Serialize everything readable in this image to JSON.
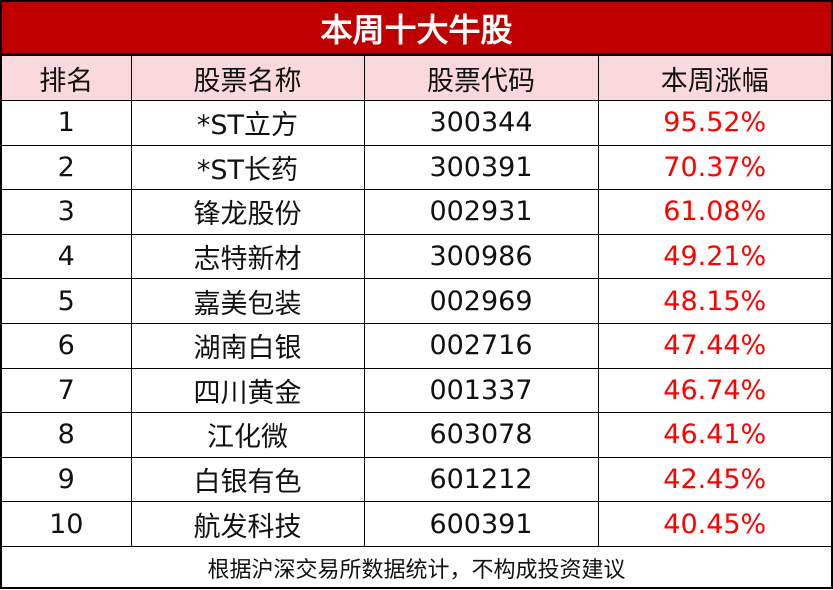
{
  "title": "本周十大牛股",
  "headers": [
    "排名",
    "股票名称",
    "股票代码",
    "本周涨幅"
  ],
  "rows": [
    {
      "rank": "1",
      "name": "*ST立方",
      "code": "300344",
      "change": "95.52%"
    },
    {
      "rank": "2",
      "name": "*ST长药",
      "code": "300391",
      "change": "70.37%"
    },
    {
      "rank": "3",
      "name": "锋龙股份",
      "code": "002931",
      "change": "61.08%"
    },
    {
      "rank": "4",
      "name": "志特新材",
      "code": "300986",
      "change": "49.21%"
    },
    {
      "rank": "5",
      "name": "嘉美包装",
      "code": "002969",
      "change": "48.15%"
    },
    {
      "rank": "6",
      "name": "湖南白银",
      "code": "002716",
      "change": "47.44%"
    },
    {
      "rank": "7",
      "name": "四川黄金",
      "code": "001337",
      "change": "46.74%"
    },
    {
      "rank": "8",
      "name": "江化微",
      "code": "603078",
      "change": "46.41%"
    },
    {
      "rank": "9",
      "name": "白银有色",
      "code": "601212",
      "change": "42.45%"
    },
    {
      "rank": "10",
      "name": "航发科技",
      "code": "600391",
      "change": "40.45%"
    }
  ],
  "footer": "根据沪深交易所数据统计，不构成投资建议",
  "colors": {
    "title_bg": "#C00000",
    "header_bg": "#F9D9DE",
    "gain": "#FF0000"
  }
}
